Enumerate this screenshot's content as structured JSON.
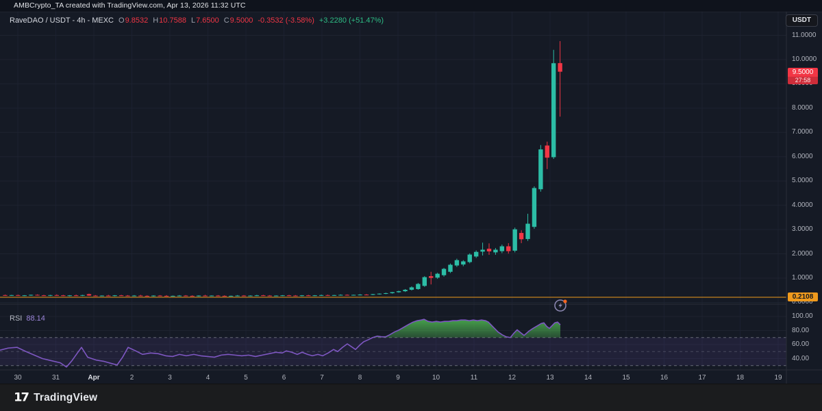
{
  "attribution": {
    "text": "AMBCrypto_TA created with TradingView.com, Apr 13, 2026 11:32 UTC"
  },
  "legend": {
    "symbol": "RaveDAO / USDT - 4h - MEXC",
    "ohlc": [
      {
        "label": "O",
        "value": "9.8532"
      },
      {
        "label": "H",
        "value": "10.7588"
      },
      {
        "label": "L",
        "value": "7.6500"
      },
      {
        "label": "C",
        "value": "9.5000"
      }
    ],
    "change": "-0.3532 (-3.58%)",
    "change_extra": "+3.2280 (+51.47%)"
  },
  "price_axis": {
    "currency_button": "USDT",
    "ticks": [
      {
        "text": "11.0000",
        "value": 11
      },
      {
        "text": "10.0000",
        "value": 10
      },
      {
        "text": "9.0000",
        "value": 9
      },
      {
        "text": "8.0000",
        "value": 8
      },
      {
        "text": "7.0000",
        "value": 7
      },
      {
        "text": "6.0000",
        "value": 6
      },
      {
        "text": "5.0000",
        "value": 5
      },
      {
        "text": "4.0000",
        "value": 4
      },
      {
        "text": "3.0000",
        "value": 3
      },
      {
        "text": "2.0000",
        "value": 2
      },
      {
        "text": "1.0000",
        "value": 1
      },
      {
        "text": "0.0000",
        "value": 0
      }
    ],
    "last_price_badge": {
      "price": "9.5000",
      "countdown": "27:58"
    },
    "level_badge": {
      "text": "0.2108",
      "value": 0.2108
    }
  },
  "time_axis": {
    "ticks": [
      "30",
      "31",
      "Apr",
      "2",
      "3",
      "4",
      "5",
      "6",
      "7",
      "8",
      "9",
      "10",
      "11",
      "12",
      "13",
      "14",
      "15",
      "16",
      "17",
      "18",
      "19"
    ]
  },
  "rsi_panel": {
    "label": "RSI",
    "value": "88.14",
    "ticks": [
      {
        "text": "100.00",
        "value": 100
      },
      {
        "text": "80.00",
        "value": 80
      },
      {
        "text": "60.00",
        "value": 60
      },
      {
        "text": "40.00",
        "value": 40
      }
    ]
  },
  "footer": {
    "brand": "TradingView",
    "glyph": "17"
  },
  "colors": {
    "background": "#151a25",
    "grid": "#1e2330",
    "up": "#2cbda6",
    "down": "#f23645",
    "orange_line": "#b5791f",
    "orange_badge": "#ef9a1d",
    "rsi_line": "#7e57c2",
    "rsi_green_fill": "#4caf50",
    "rsi_band": "rgba(126,87,194,0.12)",
    "separator": "#2a2e39",
    "text": "#b2b5be"
  },
  "chart_data": {
    "type": "candlestick",
    "title": "RaveDAO / USDT - 4h - MEXC",
    "current_ohlc": {
      "open": 9.8532,
      "high": 10.7588,
      "low": 7.65,
      "close": 9.5,
      "change": "-0.3532 (-3.58%)",
      "change_extra": "+3.2280 (+51.47%)"
    },
    "ylim": [
      0,
      11.6
    ],
    "x_categories": [
      "30",
      "31",
      "Apr",
      "2",
      "3",
      "4",
      "5",
      "6",
      "7",
      "8",
      "9",
      "10",
      "11",
      "12",
      "13",
      "14",
      "15",
      "16",
      "17",
      "18",
      "19"
    ],
    "price_line_level": 0.2108,
    "candles": [
      [
        0.3,
        0.32,
        0.28,
        0.29
      ],
      [
        0.29,
        0.31,
        0.27,
        0.3
      ],
      [
        0.3,
        0.32,
        0.28,
        0.28
      ],
      [
        0.28,
        0.3,
        0.26,
        0.29
      ],
      [
        0.29,
        0.32,
        0.27,
        0.31
      ],
      [
        0.31,
        0.33,
        0.28,
        0.29
      ],
      [
        0.29,
        0.31,
        0.27,
        0.28
      ],
      [
        0.28,
        0.31,
        0.26,
        0.3
      ],
      [
        0.3,
        0.33,
        0.28,
        0.29
      ],
      [
        0.29,
        0.31,
        0.26,
        0.27
      ],
      [
        0.27,
        0.3,
        0.25,
        0.29
      ],
      [
        0.29,
        0.32,
        0.27,
        0.28
      ],
      [
        0.28,
        0.31,
        0.26,
        0.3
      ],
      [
        0.34,
        0.36,
        0.27,
        0.28
      ],
      [
        0.28,
        0.3,
        0.26,
        0.27
      ],
      [
        0.27,
        0.29,
        0.25,
        0.28
      ],
      [
        0.28,
        0.31,
        0.26,
        0.27
      ],
      [
        0.27,
        0.3,
        0.25,
        0.29
      ],
      [
        0.29,
        0.31,
        0.27,
        0.28
      ],
      [
        0.28,
        0.3,
        0.26,
        0.27
      ],
      [
        0.27,
        0.3,
        0.25,
        0.28
      ],
      [
        0.28,
        0.31,
        0.26,
        0.27
      ],
      [
        0.27,
        0.29,
        0.25,
        0.26
      ],
      [
        0.26,
        0.29,
        0.24,
        0.28
      ],
      [
        0.28,
        0.3,
        0.26,
        0.27
      ],
      [
        0.27,
        0.3,
        0.25,
        0.26
      ],
      [
        0.26,
        0.28,
        0.24,
        0.27
      ],
      [
        0.27,
        0.3,
        0.25,
        0.28
      ],
      [
        0.28,
        0.3,
        0.26,
        0.27
      ],
      [
        0.27,
        0.29,
        0.25,
        0.26
      ],
      [
        0.26,
        0.29,
        0.24,
        0.28
      ],
      [
        0.28,
        0.31,
        0.26,
        0.27
      ],
      [
        0.27,
        0.29,
        0.25,
        0.28
      ],
      [
        0.28,
        0.3,
        0.26,
        0.27
      ],
      [
        0.27,
        0.29,
        0.25,
        0.26
      ],
      [
        0.26,
        0.28,
        0.24,
        0.27
      ],
      [
        0.27,
        0.3,
        0.25,
        0.28
      ],
      [
        0.28,
        0.3,
        0.26,
        0.27
      ],
      [
        0.27,
        0.29,
        0.25,
        0.28
      ],
      [
        0.28,
        0.31,
        0.26,
        0.29
      ],
      [
        0.29,
        0.31,
        0.27,
        0.28
      ],
      [
        0.28,
        0.3,
        0.26,
        0.27
      ],
      [
        0.27,
        0.29,
        0.25,
        0.28
      ],
      [
        0.28,
        0.3,
        0.26,
        0.29
      ],
      [
        0.29,
        0.31,
        0.27,
        0.28
      ],
      [
        0.28,
        0.3,
        0.26,
        0.27
      ],
      [
        0.27,
        0.3,
        0.25,
        0.29
      ],
      [
        0.29,
        0.31,
        0.27,
        0.28
      ],
      [
        0.28,
        0.3,
        0.26,
        0.29
      ],
      [
        0.29,
        0.32,
        0.27,
        0.3
      ],
      [
        0.3,
        0.32,
        0.28,
        0.29
      ],
      [
        0.29,
        0.31,
        0.27,
        0.3
      ],
      [
        0.3,
        0.33,
        0.28,
        0.31
      ],
      [
        0.31,
        0.33,
        0.29,
        0.3
      ],
      [
        0.3,
        0.32,
        0.28,
        0.31
      ],
      [
        0.31,
        0.34,
        0.29,
        0.32
      ],
      [
        0.32,
        0.34,
        0.3,
        0.31
      ],
      [
        0.31,
        0.35,
        0.3,
        0.34
      ],
      [
        0.34,
        0.37,
        0.32,
        0.36
      ],
      [
        0.36,
        0.4,
        0.34,
        0.38
      ],
      [
        0.38,
        0.43,
        0.36,
        0.42
      ],
      [
        0.42,
        0.48,
        0.4,
        0.46
      ],
      [
        0.46,
        0.55,
        0.43,
        0.52
      ],
      [
        0.52,
        0.66,
        0.49,
        0.62
      ],
      [
        0.55,
        0.8,
        0.52,
        0.76
      ],
      [
        0.68,
        1.08,
        0.64,
        1.04
      ],
      [
        1.08,
        1.26,
        0.74,
        1.01
      ],
      [
        1.02,
        1.22,
        0.97,
        1.18
      ],
      [
        1.12,
        1.42,
        1.06,
        1.38
      ],
      [
        1.26,
        1.6,
        1.21,
        1.55
      ],
      [
        1.52,
        1.8,
        1.46,
        1.74
      ],
      [
        1.56,
        1.74,
        1.49,
        1.69
      ],
      [
        1.66,
        2.02,
        1.61,
        1.97
      ],
      [
        1.89,
        2.14,
        1.83,
        2.08
      ],
      [
        2.09,
        2.46,
        1.93,
        2.17
      ],
      [
        2.21,
        2.43,
        1.96,
        2.1
      ],
      [
        2.06,
        2.24,
        1.96,
        2.17
      ],
      [
        2.11,
        2.38,
        2.03,
        2.31
      ],
      [
        2.31,
        2.44,
        2.01,
        2.11
      ],
      [
        2.13,
        3.08,
        2.06,
        3.01
      ],
      [
        2.86,
        2.97,
        2.44,
        2.6
      ],
      [
        2.61,
        3.65,
        2.53,
        3.24
      ],
      [
        3.11,
        4.78,
        3.03,
        4.71
      ],
      [
        4.66,
        6.48,
        4.56,
        6.3
      ],
      [
        6.46,
        6.62,
        5.49,
        5.96
      ],
      [
        5.98,
        10.4,
        5.91,
        9.85
      ],
      [
        9.8532,
        10.7588,
        7.65,
        9.5
      ]
    ],
    "rsi": {
      "current": 88.14,
      "overbought": 70,
      "mid": 50,
      "oversold": 30,
      "axis_ticks": [
        100,
        80,
        60,
        40
      ],
      "points": [
        [
          0,
          52
        ],
        [
          12,
          55
        ],
        [
          25,
          56
        ],
        [
          38,
          50
        ],
        [
          50,
          45
        ],
        [
          62,
          40
        ],
        [
          75,
          37
        ],
        [
          88,
          34
        ],
        [
          97,
          28
        ],
        [
          105,
          37
        ],
        [
          113,
          48
        ],
        [
          119,
          56
        ],
        [
          128,
          42
        ],
        [
          140,
          38
        ],
        [
          152,
          36
        ],
        [
          163,
          33
        ],
        [
          171,
          31
        ],
        [
          179,
          42
        ],
        [
          187,
          56
        ],
        [
          198,
          51
        ],
        [
          208,
          46
        ],
        [
          220,
          48
        ],
        [
          231,
          47
        ],
        [
          242,
          44
        ],
        [
          252,
          43
        ],
        [
          262,
          46
        ],
        [
          272,
          44
        ],
        [
          283,
          46
        ],
        [
          293,
          44
        ],
        [
          303,
          43
        ],
        [
          313,
          42
        ],
        [
          323,
          45
        ],
        [
          333,
          46
        ],
        [
          343,
          45
        ],
        [
          353,
          44
        ],
        [
          363,
          45
        ],
        [
          373,
          43
        ],
        [
          383,
          45
        ],
        [
          393,
          47
        ],
        [
          403,
          49
        ],
        [
          412,
          48
        ],
        [
          418,
          51
        ],
        [
          426,
          49
        ],
        [
          434,
          46
        ],
        [
          441,
          49
        ],
        [
          449,
          46
        ],
        [
          456,
          44
        ],
        [
          464,
          46
        ],
        [
          471,
          44
        ],
        [
          479,
          48
        ],
        [
          487,
          53
        ],
        [
          493,
          50
        ],
        [
          500,
          56
        ],
        [
          507,
          61
        ],
        [
          513,
          57
        ],
        [
          519,
          53
        ],
        [
          525,
          59
        ],
        [
          531,
          64
        ],
        [
          538,
          67
        ],
        [
          544,
          70
        ],
        [
          551,
          72
        ],
        [
          557,
          71
        ],
        [
          563,
          71
        ],
        [
          569,
          74
        ],
        [
          576,
          78
        ],
        [
          583,
          81
        ],
        [
          590,
          85
        ],
        [
          597,
          89
        ],
        [
          603,
          92
        ],
        [
          609,
          94
        ],
        [
          615,
          95
        ],
        [
          619,
          96
        ],
        [
          625,
          93
        ],
        [
          631,
          92
        ],
        [
          637,
          93
        ],
        [
          643,
          92
        ],
        [
          649,
          93
        ],
        [
          655,
          93
        ],
        [
          661,
          94
        ],
        [
          667,
          94
        ],
        [
          673,
          95
        ],
        [
          679,
          95
        ],
        [
          685,
          94
        ],
        [
          691,
          95
        ],
        [
          697,
          94
        ],
        [
          703,
          95
        ],
        [
          709,
          94
        ],
        [
          713,
          92
        ],
        [
          717,
          88
        ],
        [
          721,
          84
        ],
        [
          727,
          78
        ],
        [
          733,
          74
        ],
        [
          739,
          71
        ],
        [
          745,
          70
        ],
        [
          750,
          76
        ],
        [
          755,
          81
        ],
        [
          760,
          77
        ],
        [
          765,
          73
        ],
        [
          772,
          79
        ],
        [
          778,
          83
        ],
        [
          785,
          87
        ],
        [
          790,
          90
        ],
        [
          794,
          91
        ],
        [
          798,
          86
        ],
        [
          802,
          83
        ],
        [
          806,
          87
        ],
        [
          810,
          91
        ],
        [
          814,
          92
        ],
        [
          818,
          88.14
        ]
      ]
    }
  }
}
